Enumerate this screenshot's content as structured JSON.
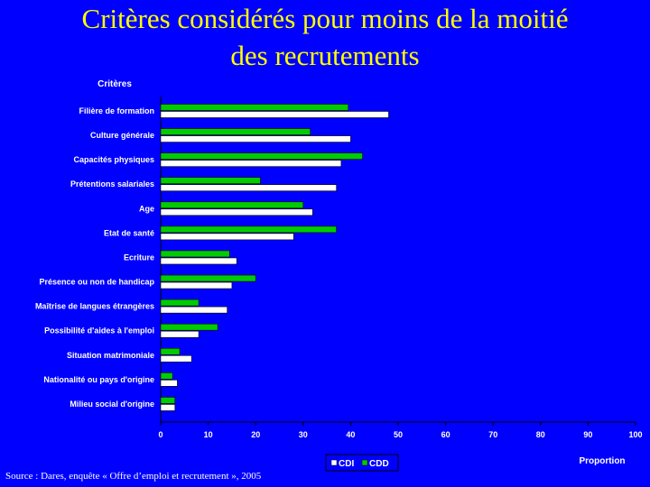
{
  "title": {
    "line1": "Critères considérés pour moins de la moitié",
    "line2": "des recrutements"
  },
  "source": "Source : Dares, enquête « Offre d’emploi et recrutement », 2005",
  "chart_data": {
    "type": "bar",
    "orientation": "horizontal",
    "ylabel": "Critères",
    "xlabel": "Proportion",
    "xlim": [
      0,
      100
    ],
    "xticks": [
      0,
      10,
      20,
      30,
      40,
      50,
      60,
      70,
      80,
      90,
      100
    ],
    "grid": false,
    "legend": "bottom",
    "categories": [
      "Filière de formation",
      "Culture générale",
      "Capacités physiques",
      "Prétentions salariales",
      "Age",
      "Etat de santé",
      "Ecriture",
      "Présence ou non de handicap",
      "Maîtrise de langues étrangères",
      "Possibilité d'aides à l'emploi",
      "Situation matrimoniale",
      "Nationalité ou pays d'origine",
      "Milieu social d'origine"
    ],
    "series": [
      {
        "name": "CDI",
        "color": "#ffffff",
        "values": [
          48,
          40,
          38,
          37,
          32,
          28,
          16,
          15,
          14,
          8,
          6.5,
          3.5,
          3
        ]
      },
      {
        "name": "CDD",
        "color": "#00cc00",
        "values": [
          39.5,
          31.5,
          42.5,
          21,
          30,
          37,
          14.5,
          20,
          8,
          12,
          4,
          2.5,
          3
        ]
      }
    ]
  }
}
